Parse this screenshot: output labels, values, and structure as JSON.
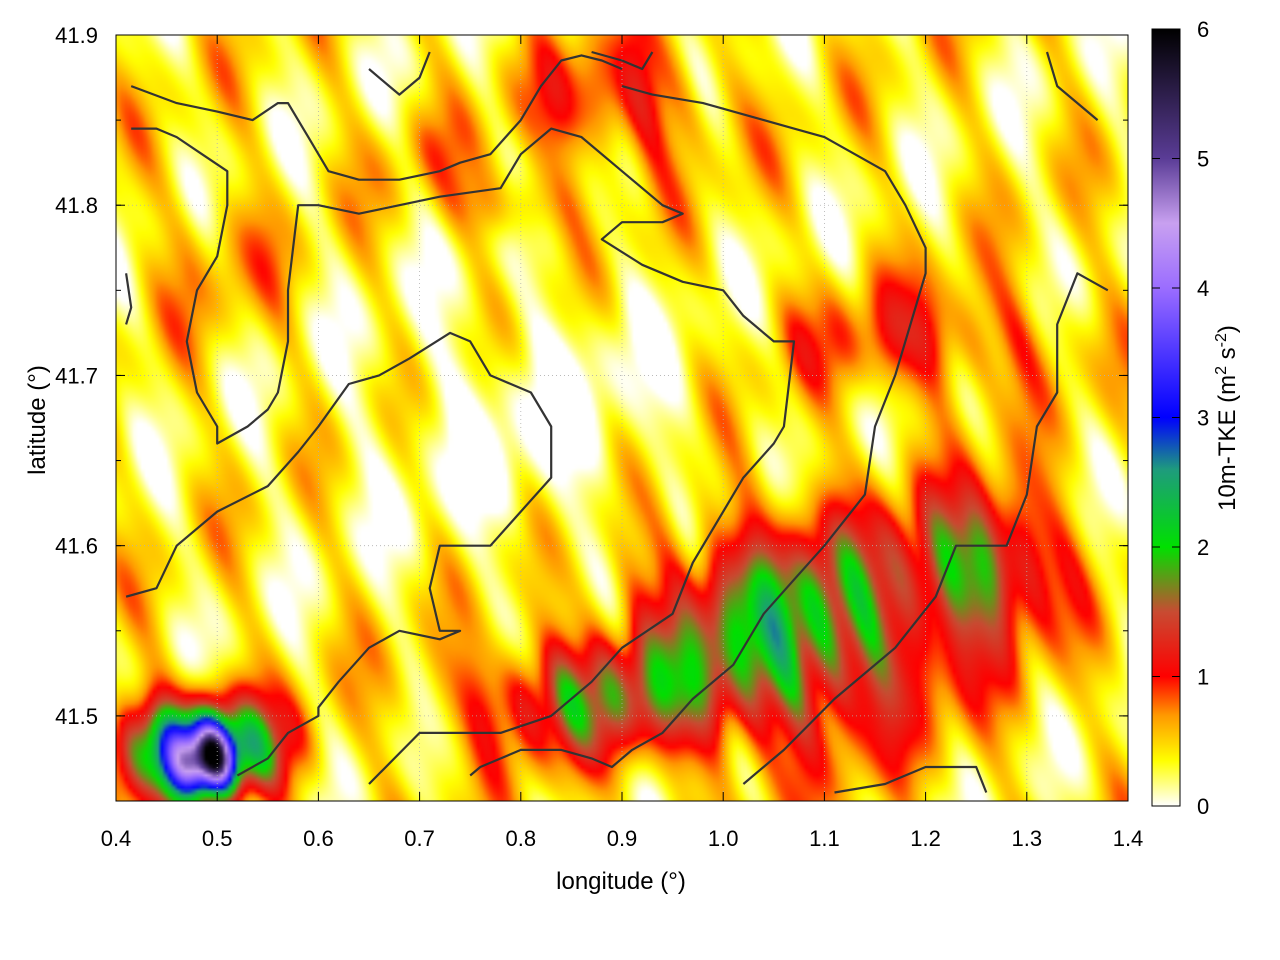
{
  "chart_data": {
    "type": "heatmap",
    "title": "",
    "xlabel": "longitude (°)",
    "ylabel": "latitude (°)",
    "xlim": [
      0.4,
      1.4
    ],
    "ylim": [
      41.45,
      41.9
    ],
    "xticks": [
      "0.4",
      "0.5",
      "0.6",
      "0.7",
      "0.8",
      "0.9",
      "1.0",
      "1.1",
      "1.2",
      "1.3",
      "1.4"
    ],
    "yticks": [
      "41.5",
      "41.6",
      "41.7",
      "41.8",
      "41.9"
    ],
    "grid": true,
    "colorbar": {
      "label_main": "10m-TKE (m",
      "label_sup1": "2",
      "label_mid": " s",
      "label_sup2": "-2",
      "label_end": ")",
      "range": [
        0,
        6
      ],
      "ticks": [
        "0",
        "1",
        "2",
        "3",
        "4",
        "5",
        "6"
      ],
      "stops": [
        {
          "value": 0.0,
          "color": "#ffffff"
        },
        {
          "value": 0.35,
          "color": "#ffff00"
        },
        {
          "value": 0.7,
          "color": "#ff9900"
        },
        {
          "value": 1.0,
          "color": "#ff0000"
        },
        {
          "value": 1.5,
          "color": "#c84b32"
        },
        {
          "value": 2.0,
          "color": "#00e000"
        },
        {
          "value": 2.6,
          "color": "#1e9b7d"
        },
        {
          "value": 3.0,
          "color": "#0000ff"
        },
        {
          "value": 4.0,
          "color": "#9b6dff"
        },
        {
          "value": 4.5,
          "color": "#c8a0f0"
        },
        {
          "value": 5.0,
          "color": "#5a3c96"
        },
        {
          "value": 6.0,
          "color": "#000000"
        }
      ]
    },
    "field_regions": {
      "background_level": 0.35,
      "blobs": [
        {
          "lon": 1.07,
          "lat": 41.55,
          "rlon": 0.17,
          "rlat": 0.075,
          "value": 2.3
        },
        {
          "lon": 0.86,
          "lat": 41.51,
          "rlon": 0.14,
          "rlat": 0.04,
          "value": 1.6
        },
        {
          "lon": 1.26,
          "lat": 41.59,
          "rlon": 0.08,
          "rlat": 0.05,
          "value": 1.9
        },
        {
          "lon": 0.48,
          "lat": 41.48,
          "rlon": 0.09,
          "rlat": 0.035,
          "value": 3.4
        },
        {
          "lon": 0.49,
          "lat": 41.475,
          "rlon": 0.03,
          "rlat": 0.02,
          "value": 4.2
        },
        {
          "lon": 1.2,
          "lat": 41.72,
          "rlon": 0.15,
          "rlat": 0.04,
          "value": 1.1
        },
        {
          "lon": 0.9,
          "lat": 41.86,
          "rlon": 0.1,
          "rlat": 0.045,
          "value": 1.2
        },
        {
          "lon": 0.79,
          "lat": 41.8,
          "rlon": 0.07,
          "rlat": 0.025,
          "value": 0.9
        },
        {
          "lon": 0.5,
          "lat": 41.77,
          "rlon": 0.07,
          "rlat": 0.05,
          "value": 0.7
        },
        {
          "lon": 0.7,
          "lat": 41.83,
          "rlon": 0.06,
          "rlat": 0.03,
          "value": 0.6
        }
      ],
      "clear_zone": {
        "lon": 0.82,
        "lat": 41.67,
        "rlon": 0.16,
        "rlat": 0.08
      }
    },
    "contours": [
      [
        [
          0.415,
          41.87
        ],
        [
          0.46,
          41.86
        ],
        [
          0.5,
          41.855
        ],
        [
          0.535,
          41.85
        ],
        [
          0.56,
          41.86
        ],
        [
          0.57,
          41.86
        ],
        [
          0.59,
          41.84
        ],
        [
          0.61,
          41.82
        ],
        [
          0.64,
          41.815
        ],
        [
          0.68,
          41.815
        ],
        [
          0.72,
          41.82
        ],
        [
          0.74,
          41.825
        ],
        [
          0.77,
          41.83
        ],
        [
          0.8,
          41.85
        ],
        [
          0.82,
          41.87
        ],
        [
          0.84,
          41.885
        ],
        [
          0.86,
          41.888
        ],
        [
          0.88,
          41.885
        ],
        [
          0.9,
          41.88
        ]
      ],
      [
        [
          0.415,
          41.845
        ],
        [
          0.44,
          41.845
        ],
        [
          0.46,
          41.84
        ],
        [
          0.485,
          41.83
        ],
        [
          0.51,
          41.82
        ],
        [
          0.51,
          41.8
        ],
        [
          0.5,
          41.77
        ],
        [
          0.48,
          41.75
        ],
        [
          0.47,
          41.72
        ],
        [
          0.48,
          41.69
        ],
        [
          0.5,
          41.67
        ],
        [
          0.5,
          41.66
        ],
        [
          0.53,
          41.67
        ],
        [
          0.55,
          41.68
        ],
        [
          0.56,
          41.69
        ],
        [
          0.57,
          41.72
        ],
        [
          0.57,
          41.75
        ],
        [
          0.58,
          41.8
        ],
        [
          0.6,
          41.8
        ],
        [
          0.64,
          41.795
        ],
        [
          0.68,
          41.8
        ],
        [
          0.72,
          41.805
        ],
        [
          0.78,
          41.81
        ],
        [
          0.8,
          41.83
        ],
        [
          0.83,
          41.845
        ],
        [
          0.86,
          41.84
        ],
        [
          0.9,
          41.82
        ],
        [
          0.94,
          41.8
        ],
        [
          0.96,
          41.795
        ],
        [
          0.94,
          41.79
        ],
        [
          0.9,
          41.79
        ],
        [
          0.88,
          41.78
        ],
        [
          0.92,
          41.765
        ],
        [
          0.96,
          41.755
        ],
        [
          1.0,
          41.75
        ],
        [
          1.02,
          41.735
        ],
        [
          1.05,
          41.72
        ],
        [
          1.07,
          41.72
        ],
        [
          1.06,
          41.67
        ],
        [
          1.05,
          41.66
        ],
        [
          1.02,
          41.64
        ],
        [
          0.99,
          41.61
        ],
        [
          0.97,
          41.59
        ],
        [
          0.95,
          41.56
        ],
        [
          0.9,
          41.54
        ],
        [
          0.87,
          41.52
        ],
        [
          0.83,
          41.5
        ],
        [
          0.78,
          41.49
        ],
        [
          0.7,
          41.49
        ],
        [
          0.65,
          41.46
        ]
      ],
      [
        [
          0.41,
          41.57
        ],
        [
          0.44,
          41.575
        ],
        [
          0.46,
          41.6
        ],
        [
          0.5,
          41.62
        ],
        [
          0.55,
          41.635
        ],
        [
          0.58,
          41.655
        ],
        [
          0.6,
          41.67
        ],
        [
          0.63,
          41.695
        ],
        [
          0.66,
          41.7
        ],
        [
          0.69,
          41.71
        ],
        [
          0.73,
          41.725
        ],
        [
          0.75,
          41.72
        ],
        [
          0.77,
          41.7
        ],
        [
          0.81,
          41.69
        ],
        [
          0.83,
          41.67
        ],
        [
          0.83,
          41.64
        ],
        [
          0.8,
          41.62
        ],
        [
          0.77,
          41.6
        ],
        [
          0.72,
          41.6
        ],
        [
          0.71,
          41.575
        ],
        [
          0.72,
          41.55
        ],
        [
          0.74,
          41.55
        ],
        [
          0.72,
          41.545
        ],
        [
          0.68,
          41.55
        ],
        [
          0.65,
          41.54
        ],
        [
          0.62,
          41.52
        ],
        [
          0.6,
          41.505
        ],
        [
          0.6,
          41.5
        ],
        [
          0.57,
          41.49
        ],
        [
          0.55,
          41.475
        ],
        [
          0.52,
          41.465
        ]
      ],
      [
        [
          0.75,
          41.465
        ],
        [
          0.76,
          41.47
        ],
        [
          0.8,
          41.48
        ],
        [
          0.84,
          41.48
        ],
        [
          0.87,
          41.475
        ],
        [
          0.89,
          41.47
        ],
        [
          0.91,
          41.48
        ],
        [
          0.94,
          41.49
        ],
        [
          0.97,
          41.51
        ],
        [
          1.01,
          41.53
        ],
        [
          1.04,
          41.56
        ],
        [
          1.07,
          41.58
        ],
        [
          1.1,
          41.6
        ],
        [
          1.14,
          41.63
        ],
        [
          1.15,
          41.67
        ],
        [
          1.17,
          41.7
        ],
        [
          1.19,
          41.74
        ],
        [
          1.2,
          41.76
        ],
        [
          1.2,
          41.775
        ],
        [
          1.18,
          41.8
        ],
        [
          1.16,
          41.82
        ],
        [
          1.1,
          41.84
        ],
        [
          1.04,
          41.85
        ],
        [
          0.98,
          41.86
        ],
        [
          0.93,
          41.865
        ],
        [
          0.9,
          41.87
        ]
      ],
      [
        [
          0.65,
          41.88
        ],
        [
          0.67,
          41.87
        ],
        [
          0.68,
          41.865
        ],
        [
          0.7,
          41.875
        ],
        [
          0.71,
          41.89
        ]
      ],
      [
        [
          0.87,
          41.89
        ],
        [
          0.9,
          41.885
        ],
        [
          0.92,
          41.88
        ],
        [
          0.93,
          41.89
        ]
      ],
      [
        [
          0.41,
          41.73
        ],
        [
          0.415,
          41.74
        ],
        [
          0.41,
          41.76
        ]
      ],
      [
        [
          1.37,
          41.85
        ],
        [
          1.33,
          41.87
        ],
        [
          1.32,
          41.89
        ]
      ],
      [
        [
          1.38,
          41.75
        ],
        [
          1.35,
          41.76
        ],
        [
          1.33,
          41.73
        ],
        [
          1.33,
          41.69
        ],
        [
          1.31,
          41.67
        ],
        [
          1.3,
          41.63
        ],
        [
          1.28,
          41.6
        ],
        [
          1.23,
          41.6
        ],
        [
          1.21,
          41.57
        ],
        [
          1.17,
          41.54
        ],
        [
          1.11,
          41.51
        ],
        [
          1.06,
          41.48
        ],
        [
          1.02,
          41.46
        ]
      ],
      [
        [
          1.11,
          41.455
        ],
        [
          1.16,
          41.46
        ],
        [
          1.2,
          41.47
        ],
        [
          1.25,
          41.47
        ],
        [
          1.26,
          41.455
        ]
      ]
    ]
  }
}
